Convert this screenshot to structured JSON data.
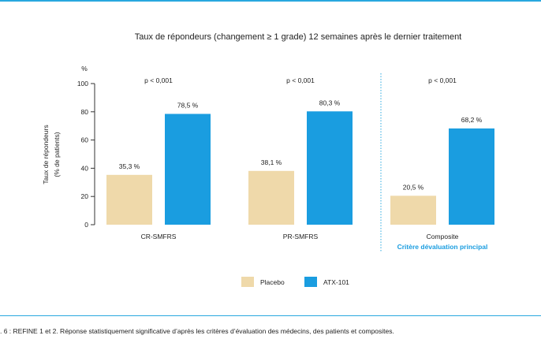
{
  "chart_data": {
    "type": "bar",
    "title": "Taux de répondeurs (changement ≥ 1 grade) 12 semaines après le dernier traitement",
    "ylabel_lines": [
      "Taux de répondeurs",
      "(% de patients)"
    ],
    "y_unit": "%",
    "ylim": [
      0,
      100
    ],
    "yticks": [
      0,
      20,
      40,
      60,
      80,
      100
    ],
    "categories": [
      "CR-SMFRS",
      "PR-SMFRS",
      "Composite"
    ],
    "category_sublabels": [
      "",
      "",
      "Critère dévaluation principal"
    ],
    "series": [
      {
        "name": "Placebo",
        "color": "#efd9aa",
        "values": [
          35.3,
          38.1,
          20.5
        ],
        "labels": [
          "35,3 %",
          "38,1 %",
          "20,5 %"
        ]
      },
      {
        "name": "ATX-101",
        "color": "#1a9de0",
        "values": [
          78.5,
          80.3,
          68.2
        ],
        "labels": [
          "78,5 %",
          "80,3 %",
          "68,2 %"
        ]
      }
    ],
    "pvalues": [
      "p < 0,001",
      "p < 0,001",
      "p < 0,001"
    ],
    "grid": false,
    "legend_position": "bottom-center"
  },
  "caption": ". 6 : REFINE 1 et 2. Réponse statistiquement significative d’après les critères d’évaluation des médecins, des patients et composites.",
  "colors": {
    "accent": "#29a8df",
    "sublabel": "#1a9de0"
  }
}
